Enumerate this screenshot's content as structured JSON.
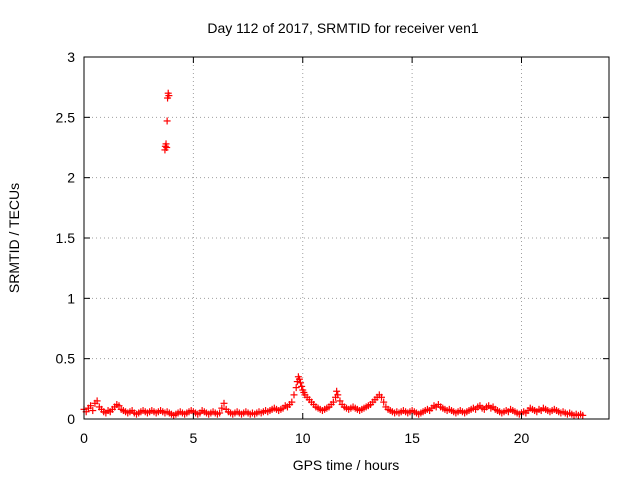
{
  "chart_data": {
    "type": "scatter",
    "title": "Day 112 of 2017, SRMTID for receiver ven1",
    "xlabel": "GPS time / hours",
    "ylabel": "SRMTID / TECUs",
    "xlim": [
      0,
      24
    ],
    "ylim": [
      0,
      3
    ],
    "xticks": [
      0,
      5,
      10,
      15,
      20
    ],
    "yticks": [
      0,
      0.5,
      1,
      1.5,
      2,
      2.5,
      3
    ],
    "ytick_labels": [
      "0",
      "0.5",
      "1",
      "1.5",
      "2",
      "2.5",
      "3"
    ],
    "grid": true,
    "marker": "plus",
    "series_color": "#ff0000",
    "points": [
      [
        0.0,
        0.08
      ],
      [
        0.1,
        0.06
      ],
      [
        0.2,
        0.09
      ],
      [
        0.3,
        0.11
      ],
      [
        0.4,
        0.07
      ],
      [
        0.5,
        0.13
      ],
      [
        0.6,
        0.15
      ],
      [
        0.7,
        0.1
      ],
      [
        0.8,
        0.08
      ],
      [
        0.9,
        0.06
      ],
      [
        1.0,
        0.05
      ],
      [
        1.1,
        0.07
      ],
      [
        1.2,
        0.06
      ],
      [
        1.3,
        0.08
      ],
      [
        1.4,
        0.1
      ],
      [
        1.5,
        0.12
      ],
      [
        1.6,
        0.11
      ],
      [
        1.7,
        0.08
      ],
      [
        1.8,
        0.07
      ],
      [
        1.9,
        0.06
      ],
      [
        2.0,
        0.05
      ],
      [
        2.1,
        0.06
      ],
      [
        2.2,
        0.07
      ],
      [
        2.3,
        0.05
      ],
      [
        2.4,
        0.04
      ],
      [
        2.5,
        0.05
      ],
      [
        2.6,
        0.06
      ],
      [
        2.7,
        0.07
      ],
      [
        2.8,
        0.06
      ],
      [
        2.9,
        0.05
      ],
      [
        3.0,
        0.06
      ],
      [
        3.1,
        0.07
      ],
      [
        3.2,
        0.06
      ],
      [
        3.3,
        0.05
      ],
      [
        3.4,
        0.06
      ],
      [
        3.5,
        0.07
      ],
      [
        3.6,
        0.06
      ],
      [
        3.7,
        2.23
      ],
      [
        3.72,
        2.26
      ],
      [
        3.75,
        2.28
      ],
      [
        3.78,
        2.25
      ],
      [
        3.8,
        2.47
      ],
      [
        3.82,
        2.66
      ],
      [
        3.85,
        2.7
      ],
      [
        3.88,
        2.68
      ],
      [
        3.7,
        0.05
      ],
      [
        3.8,
        0.06
      ],
      [
        3.9,
        0.05
      ],
      [
        4.0,
        0.04
      ],
      [
        4.1,
        0.03
      ],
      [
        4.2,
        0.04
      ],
      [
        4.3,
        0.05
      ],
      [
        4.4,
        0.06
      ],
      [
        4.5,
        0.05
      ],
      [
        4.6,
        0.04
      ],
      [
        4.7,
        0.05
      ],
      [
        4.8,
        0.06
      ],
      [
        4.9,
        0.07
      ],
      [
        5.0,
        0.06
      ],
      [
        5.1,
        0.05
      ],
      [
        5.2,
        0.04
      ],
      [
        5.3,
        0.05
      ],
      [
        5.4,
        0.07
      ],
      [
        5.5,
        0.06
      ],
      [
        5.6,
        0.05
      ],
      [
        5.7,
        0.04
      ],
      [
        5.8,
        0.05
      ],
      [
        5.9,
        0.06
      ],
      [
        6.0,
        0.05
      ],
      [
        6.1,
        0.04
      ],
      [
        6.2,
        0.05
      ],
      [
        6.3,
        0.09
      ],
      [
        6.4,
        0.13
      ],
      [
        6.5,
        0.08
      ],
      [
        6.6,
        0.06
      ],
      [
        6.7,
        0.05
      ],
      [
        6.8,
        0.04
      ],
      [
        6.9,
        0.05
      ],
      [
        7.0,
        0.06
      ],
      [
        7.1,
        0.05
      ],
      [
        7.2,
        0.04
      ],
      [
        7.3,
        0.05
      ],
      [
        7.4,
        0.06
      ],
      [
        7.5,
        0.05
      ],
      [
        7.6,
        0.04
      ],
      [
        7.7,
        0.05
      ],
      [
        7.8,
        0.04
      ],
      [
        7.9,
        0.05
      ],
      [
        8.0,
        0.06
      ],
      [
        8.1,
        0.05
      ],
      [
        8.2,
        0.06
      ],
      [
        8.3,
        0.07
      ],
      [
        8.4,
        0.06
      ],
      [
        8.5,
        0.07
      ],
      [
        8.6,
        0.08
      ],
      [
        8.7,
        0.09
      ],
      [
        8.8,
        0.08
      ],
      [
        8.9,
        0.07
      ],
      [
        9.0,
        0.08
      ],
      [
        9.1,
        0.09
      ],
      [
        9.2,
        0.11
      ],
      [
        9.3,
        0.1
      ],
      [
        9.4,
        0.12
      ],
      [
        9.5,
        0.14
      ],
      [
        9.6,
        0.2
      ],
      [
        9.7,
        0.26
      ],
      [
        9.75,
        0.31
      ],
      [
        9.8,
        0.35
      ],
      [
        9.85,
        0.33
      ],
      [
        9.9,
        0.3
      ],
      [
        9.95,
        0.27
      ],
      [
        10.0,
        0.24
      ],
      [
        10.05,
        0.22
      ],
      [
        10.1,
        0.2
      ],
      [
        10.2,
        0.18
      ],
      [
        10.3,
        0.16
      ],
      [
        10.4,
        0.14
      ],
      [
        10.5,
        0.12
      ],
      [
        10.6,
        0.1
      ],
      [
        10.7,
        0.09
      ],
      [
        10.8,
        0.08
      ],
      [
        10.9,
        0.07
      ],
      [
        11.0,
        0.08
      ],
      [
        11.1,
        0.09
      ],
      [
        11.2,
        0.1
      ],
      [
        11.3,
        0.12
      ],
      [
        11.4,
        0.14
      ],
      [
        11.5,
        0.18
      ],
      [
        11.55,
        0.23
      ],
      [
        11.6,
        0.2
      ],
      [
        11.7,
        0.15
      ],
      [
        11.8,
        0.12
      ],
      [
        11.9,
        0.1
      ],
      [
        12.0,
        0.09
      ],
      [
        12.1,
        0.08
      ],
      [
        12.2,
        0.09
      ],
      [
        12.3,
        0.1
      ],
      [
        12.4,
        0.09
      ],
      [
        12.5,
        0.08
      ],
      [
        12.6,
        0.07
      ],
      [
        12.7,
        0.08
      ],
      [
        12.8,
        0.09
      ],
      [
        12.9,
        0.1
      ],
      [
        13.0,
        0.11
      ],
      [
        13.1,
        0.12
      ],
      [
        13.2,
        0.14
      ],
      [
        13.3,
        0.16
      ],
      [
        13.4,
        0.18
      ],
      [
        13.5,
        0.2
      ],
      [
        13.6,
        0.18
      ],
      [
        13.7,
        0.14
      ],
      [
        13.8,
        0.1
      ],
      [
        13.9,
        0.08
      ],
      [
        14.0,
        0.07
      ],
      [
        14.1,
        0.06
      ],
      [
        14.2,
        0.05
      ],
      [
        14.3,
        0.06
      ],
      [
        14.4,
        0.05
      ],
      [
        14.5,
        0.06
      ],
      [
        14.6,
        0.07
      ],
      [
        14.7,
        0.06
      ],
      [
        14.8,
        0.05
      ],
      [
        14.9,
        0.06
      ],
      [
        15.0,
        0.07
      ],
      [
        15.1,
        0.06
      ],
      [
        15.2,
        0.05
      ],
      [
        15.3,
        0.04
      ],
      [
        15.4,
        0.05
      ],
      [
        15.5,
        0.06
      ],
      [
        15.6,
        0.07
      ],
      [
        15.7,
        0.08
      ],
      [
        15.8,
        0.07
      ],
      [
        15.9,
        0.09
      ],
      [
        16.0,
        0.11
      ],
      [
        16.1,
        0.1
      ],
      [
        16.2,
        0.12
      ],
      [
        16.3,
        0.1
      ],
      [
        16.4,
        0.09
      ],
      [
        16.5,
        0.08
      ],
      [
        16.6,
        0.07
      ],
      [
        16.7,
        0.08
      ],
      [
        16.8,
        0.07
      ],
      [
        16.9,
        0.06
      ],
      [
        17.0,
        0.05
      ],
      [
        17.1,
        0.06
      ],
      [
        17.2,
        0.07
      ],
      [
        17.3,
        0.06
      ],
      [
        17.4,
        0.05
      ],
      [
        17.5,
        0.06
      ],
      [
        17.6,
        0.07
      ],
      [
        17.7,
        0.08
      ],
      [
        17.8,
        0.09
      ],
      [
        17.9,
        0.08
      ],
      [
        18.0,
        0.1
      ],
      [
        18.1,
        0.11
      ],
      [
        18.2,
        0.09
      ],
      [
        18.3,
        0.08
      ],
      [
        18.4,
        0.1
      ],
      [
        18.5,
        0.11
      ],
      [
        18.6,
        0.09
      ],
      [
        18.7,
        0.1
      ],
      [
        18.8,
        0.08
      ],
      [
        18.9,
        0.07
      ],
      [
        19.0,
        0.06
      ],
      [
        19.1,
        0.05
      ],
      [
        19.2,
        0.06
      ],
      [
        19.3,
        0.07
      ],
      [
        19.4,
        0.06
      ],
      [
        19.5,
        0.08
      ],
      [
        19.6,
        0.07
      ],
      [
        19.7,
        0.06
      ],
      [
        19.8,
        0.05
      ],
      [
        19.9,
        0.04
      ],
      [
        20.0,
        0.05
      ],
      [
        20.1,
        0.06
      ],
      [
        20.2,
        0.05
      ],
      [
        20.3,
        0.07
      ],
      [
        20.4,
        0.09
      ],
      [
        20.5,
        0.08
      ],
      [
        20.6,
        0.07
      ],
      [
        20.7,
        0.06
      ],
      [
        20.8,
        0.08
      ],
      [
        20.9,
        0.07
      ],
      [
        21.0,
        0.09
      ],
      [
        21.1,
        0.08
      ],
      [
        21.2,
        0.07
      ],
      [
        21.3,
        0.06
      ],
      [
        21.4,
        0.07
      ],
      [
        21.5,
        0.08
      ],
      [
        21.6,
        0.07
      ],
      [
        21.7,
        0.06
      ],
      [
        21.8,
        0.05
      ],
      [
        21.9,
        0.06
      ],
      [
        22.0,
        0.05
      ],
      [
        22.1,
        0.04
      ],
      [
        22.2,
        0.05
      ],
      [
        22.3,
        0.04
      ],
      [
        22.4,
        0.03
      ],
      [
        22.5,
        0.04
      ],
      [
        22.6,
        0.03
      ],
      [
        22.7,
        0.04
      ],
      [
        22.8,
        0.03
      ]
    ]
  }
}
